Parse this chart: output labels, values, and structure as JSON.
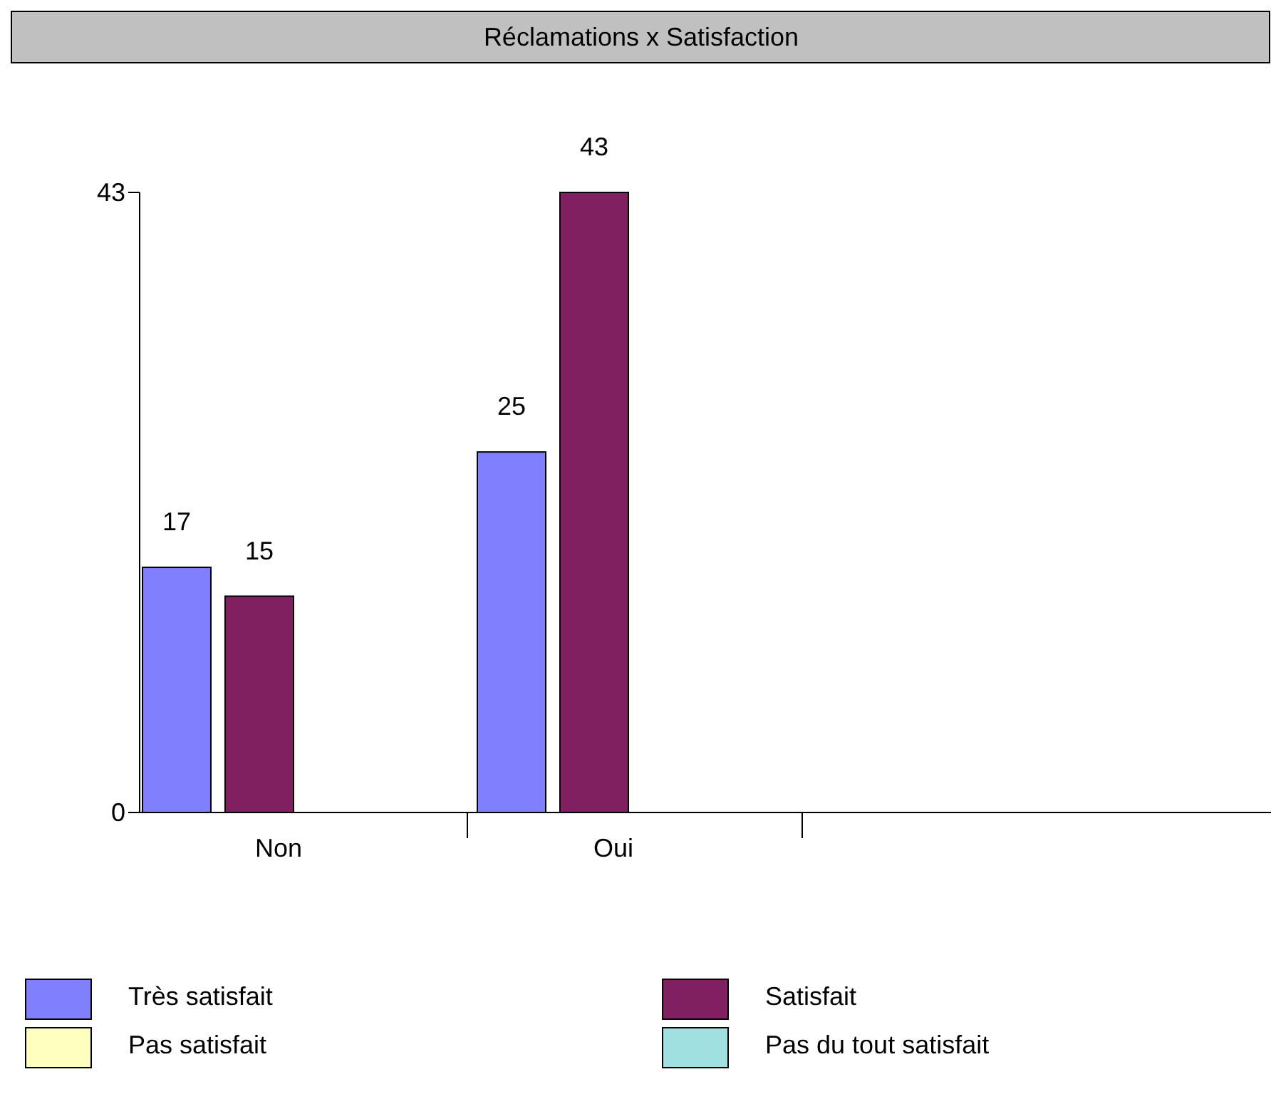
{
  "chart_data": {
    "type": "bar",
    "title": "Réclamations x Satisfaction",
    "categories": [
      "Non",
      "Oui"
    ],
    "series": [
      {
        "name": "Très satisfait",
        "color": "#8080ff",
        "values": [
          17,
          25
        ]
      },
      {
        "name": "Satisfait",
        "color": "#802060",
        "values": [
          15,
          43
        ]
      },
      {
        "name": "Pas satisfait",
        "color": "#ffffc0",
        "values": [
          null,
          null
        ]
      },
      {
        "name": "Pas du tout satisfait",
        "color": "#a0e0e0",
        "values": [
          null,
          null
        ]
      }
    ],
    "ylim": [
      0,
      43
    ],
    "yticks": [
      0,
      43
    ],
    "data_labels": true,
    "legend": "bottom",
    "grid": false
  }
}
